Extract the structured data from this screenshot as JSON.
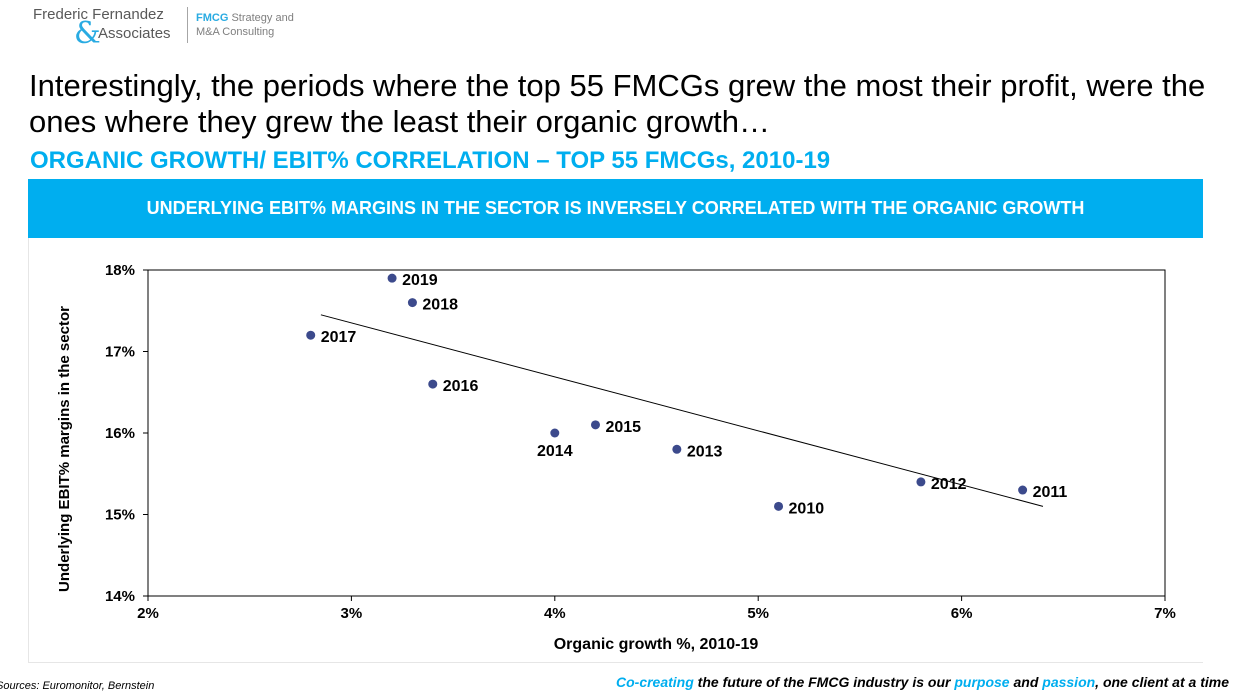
{
  "logo": {
    "name_line1": "Frederic Fernandez",
    "ampersand": "&",
    "name_line2": "Associates",
    "tag_brand": "FMCG",
    "tag_line1_rest": " Strategy and",
    "tag_line2": "M&A Consulting"
  },
  "headline": "Interestingly, the periods where the top 55 FMCGs grew the most their profit, were the ones where they grew the least their organic growth…",
  "subtitle": "ORGANIC GROWTH/ EBIT% CORRELATION – TOP 55 FMCGs, 2010-19",
  "banner": "UNDERLYING EBIT% MARGINS IN THE SECTOR IS INVERSELY CORRELATED WITH THE ORGANIC GROWTH",
  "chart_data": {
    "type": "scatter",
    "xlabel": "Organic growth %, 2010-19",
    "ylabel_prefix": "Underlying ",
    "ylabel_bold": "EBIT%",
    "ylabel_suffix": " margins in the sector",
    "xlim": [
      2,
      7
    ],
    "ylim": [
      14,
      18
    ],
    "x_ticks": [
      "2%",
      "3%",
      "4%",
      "5%",
      "6%",
      "7%"
    ],
    "y_ticks": [
      "14%",
      "15%",
      "16%",
      "17%",
      "18%"
    ],
    "grid": false,
    "points": [
      {
        "label": "2010",
        "x": 5.1,
        "y": 15.1,
        "label_pos": "right"
      },
      {
        "label": "2011",
        "x": 6.3,
        "y": 15.3,
        "label_pos": "right"
      },
      {
        "label": "2012",
        "x": 5.8,
        "y": 15.4,
        "label_pos": "right"
      },
      {
        "label": "2013",
        "x": 4.6,
        "y": 15.8,
        "label_pos": "right"
      },
      {
        "label": "2014",
        "x": 4.0,
        "y": 16.0,
        "label_pos": "below"
      },
      {
        "label": "2015",
        "x": 4.2,
        "y": 16.1,
        "label_pos": "right"
      },
      {
        "label": "2016",
        "x": 3.4,
        "y": 16.6,
        "label_pos": "right"
      },
      {
        "label": "2017",
        "x": 2.8,
        "y": 17.2,
        "label_pos": "right"
      },
      {
        "label": "2018",
        "x": 3.3,
        "y": 17.6,
        "label_pos": "right"
      },
      {
        "label": "2019",
        "x": 3.2,
        "y": 17.9,
        "label_pos": "right"
      }
    ],
    "trendline": {
      "x": [
        2.85,
        6.4
      ],
      "y": [
        17.45,
        15.1
      ]
    },
    "colors": {
      "point": "#3c4a8c",
      "trend": "#000000",
      "axis": "#000000"
    }
  },
  "sources": "Sources: Euromonitor, Bernstein",
  "footer": {
    "part1": "Co-creating",
    "part2": " the future of the FMCG industry is our ",
    "part3": "purpose",
    "part4": " and ",
    "part5": "passion",
    "part6": ", one client at a time"
  }
}
